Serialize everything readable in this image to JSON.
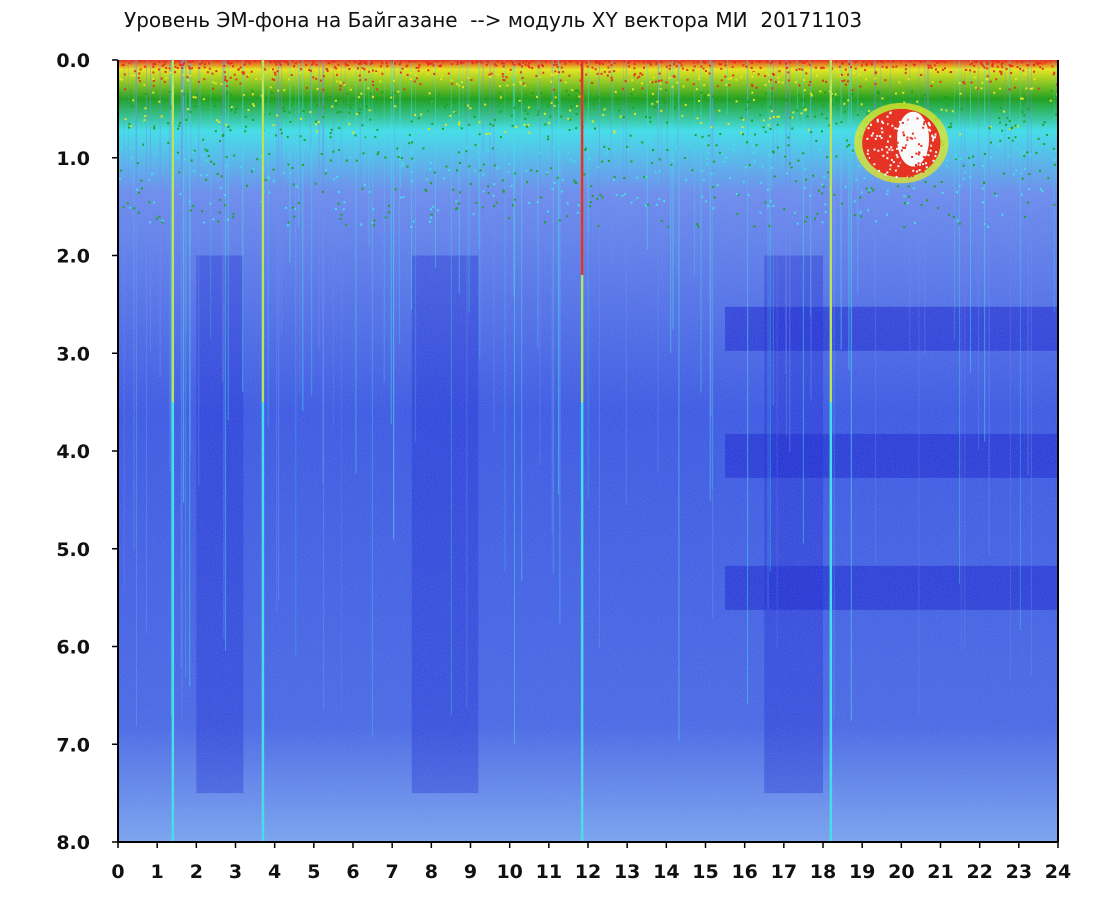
{
  "chart_data": {
    "type": "heatmap",
    "title": "Уровень ЭМ-фона на Байгазане  --> модуль XY вектора МИ  20171103",
    "x_range": [
      0,
      24
    ],
    "y_range": [
      0.0,
      8.0
    ],
    "y_inverted": true,
    "x_ticks": [
      "0",
      "1",
      "2",
      "3",
      "4",
      "5",
      "6",
      "7",
      "8",
      "9",
      "10",
      "11",
      "12",
      "13",
      "14",
      "15",
      "16",
      "17",
      "18",
      "19",
      "20",
      "21",
      "22",
      "23",
      "24"
    ],
    "y_ticks": [
      "0.0",
      "1.0",
      "2.0",
      "3.0",
      "4.0",
      "5.0",
      "6.0",
      "7.0",
      "8.0"
    ],
    "grid": false,
    "colorscale": [
      "#1e28d2",
      "#3d5ae6",
      "#6c8cf0",
      "#3fe0ea",
      "#1aa01a",
      "#e8e81a",
      "#e82a1a",
      "#ffffff"
    ],
    "bright_vertical_streaks_x": [
      1.4,
      3.7,
      11.85,
      18.2
    ],
    "dark_bands_y": [
      2.75,
      4.05,
      5.4
    ],
    "high_intensity_patch": {
      "x": [
        19.0,
        21.0
      ],
      "y": [
        0.5,
        1.2
      ]
    },
    "colors": {
      "axis": "#000000",
      "text": "#111111",
      "background": "#ffffff"
    }
  }
}
